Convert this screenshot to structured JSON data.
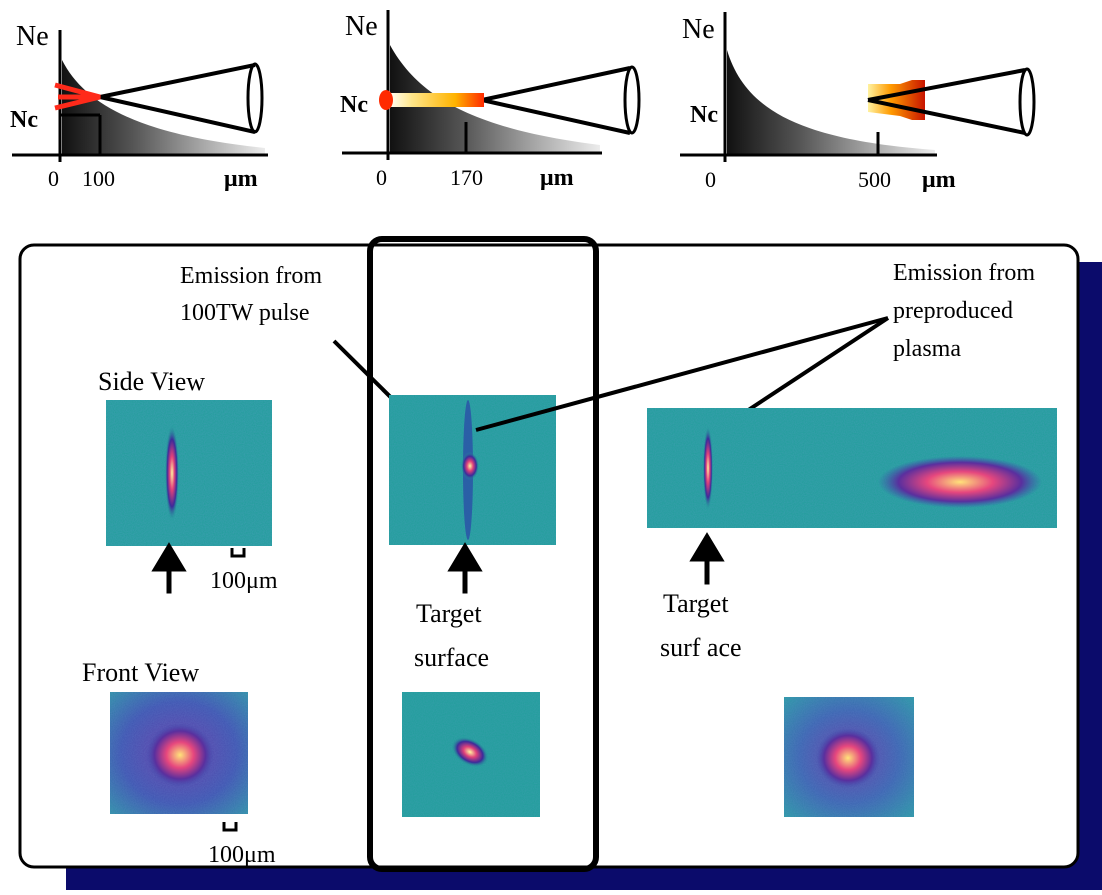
{
  "profiles": [
    {
      "y_label": "Ne",
      "critical_label": "Nc",
      "tick_labels": [
        "0",
        "100"
      ],
      "unit": "μm"
    },
    {
      "y_label": "Ne",
      "critical_label": "Nc",
      "tick_labels": [
        "0",
        "170"
      ],
      "unit": "μm"
    },
    {
      "y_label": "Ne",
      "critical_label": "Nc",
      "tick_labels": [
        "0",
        "500"
      ],
      "unit": "μm"
    }
  ],
  "annotations": {
    "emission_100tw": [
      "Emission from",
      "100TW pulse"
    ],
    "emission_preproduced": [
      "Emission from",
      "preproduced",
      "plasma"
    ],
    "side_view": "Side View",
    "front_view": "Front View",
    "scale_100um": "100μm",
    "target_surface": [
      "Target",
      "surface"
    ],
    "target_surface_spaced": [
      "Target",
      "surf ace"
    ]
  },
  "colors": {
    "image_background": "#1f9e99",
    "shadow_panel": "#0b0b6b",
    "ink": "#000000",
    "laser_red": "#ff2a1a"
  }
}
